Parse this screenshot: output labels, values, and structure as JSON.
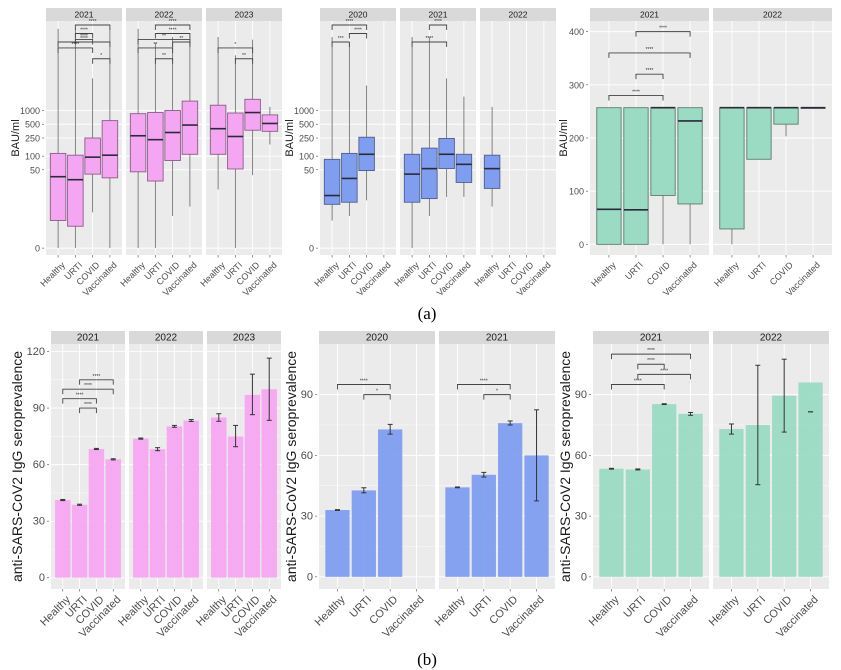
{
  "captions": {
    "a": "(a)",
    "b": "(b)"
  },
  "colors": {
    "pink": "#f5a6f2",
    "pink_edge": "#8a5c88",
    "blue": "#7f9ef0",
    "blue_edge": "#4e5f8c",
    "green": "#9bdbc4",
    "green_edge": "#5a7d6f",
    "panel_bg": "#ebebeb",
    "strip_bg": "#d9d9d9",
    "grid": "#ffffff"
  },
  "chart_data": [
    {
      "id": "a1",
      "type": "box",
      "color_key": "pink",
      "scale": "log",
      "ylabel": "BAU/ml",
      "yticks": [
        {
          "label": "1000",
          "v": 1000
        },
        {
          "label": "500",
          "v": 500
        },
        {
          "label": "250",
          "v": 250
        },
        {
          "label": "100",
          "v": 100
        },
        {
          "label": "50",
          "v": 50
        },
        {
          "label": "0",
          "v": 0
        }
      ],
      "categories": [
        "Healthy",
        "URTI",
        "COVID",
        "Vaccinated"
      ],
      "facets": [
        {
          "label": "2021",
          "boxes": [
            {
              "cat": "Healthy",
              "min": 0,
              "q1": 3,
              "med": 35,
              "q3": 115,
              "max": 60000
            },
            {
              "cat": "URTI",
              "min": 0,
              "q1": 2,
              "med": 30,
              "q3": 105,
              "max": 60000
            },
            {
              "cat": "COVID",
              "min": 5,
              "q1": 40,
              "med": 95,
              "q3": 250,
              "max": 5000
            },
            {
              "cat": "Vaccinated",
              "min": 0,
              "q1": 33,
              "med": 105,
              "q3": 600,
              "max": 60000
            }
          ],
          "sig": [
            {
              "from": 1,
              "to": 3,
              "label": "****",
              "lvl": 5
            },
            {
              "from": 1,
              "to": 2,
              "label": "****",
              "lvl": 4
            },
            {
              "from": 1,
              "to": 2,
              "label": "****",
              "lvl": 3.3
            },
            {
              "from": 0,
              "to": 3,
              "label": "****",
              "lvl": 3
            },
            {
              "from": 0,
              "to": 2,
              "label": "****",
              "lvl": 2.3
            },
            {
              "from": 2,
              "to": 3,
              "label": "*",
              "lvl": 1.5
            }
          ]
        },
        {
          "label": "2022",
          "boxes": [
            {
              "cat": "Healthy",
              "min": 0,
              "q1": 45,
              "med": 280,
              "q3": 850,
              "max": 60000
            },
            {
              "cat": "URTI",
              "min": 0,
              "q1": 28,
              "med": 230,
              "q3": 900,
              "max": 30000
            },
            {
              "cat": "COVID",
              "min": 4,
              "q1": 80,
              "med": 330,
              "q3": 1000,
              "max": 40000
            },
            {
              "cat": "Vaccinated",
              "min": 7,
              "q1": 110,
              "med": 480,
              "q3": 1600,
              "max": 40000
            }
          ],
          "sig": [
            {
              "from": 1,
              "to": 3,
              "label": "****",
              "lvl": 5
            },
            {
              "from": 1,
              "to": 3,
              "label": "****",
              "lvl": 4
            },
            {
              "from": 0,
              "to": 3,
              "label": "**",
              "lvl": 3.3
            },
            {
              "from": 2,
              "to": 3,
              "label": "**",
              "lvl": 3
            },
            {
              "from": 0,
              "to": 2,
              "label": "**",
              "lvl": 2.3
            },
            {
              "from": 1,
              "to": 2,
              "label": "**",
              "lvl": 1.5
            }
          ]
        },
        {
          "label": "2023",
          "boxes": [
            {
              "cat": "Healthy",
              "min": 18,
              "q1": 110,
              "med": 400,
              "q3": 1300,
              "max": 40000
            },
            {
              "cat": "URTI",
              "min": 0,
              "q1": 52,
              "med": 270,
              "q3": 880,
              "max": 16000
            },
            {
              "cat": "COVID",
              "min": 38,
              "q1": 370,
              "med": 900,
              "q3": 1750,
              "max": 35000
            },
            {
              "cat": "Vaccinated",
              "min": 180,
              "q1": 350,
              "med": 520,
              "q3": 800,
              "max": 1200
            }
          ],
          "sig": [
            {
              "from": 0,
              "to": 2,
              "label": "*",
              "lvl": 2.3
            },
            {
              "from": 1,
              "to": 2,
              "label": "**",
              "lvl": 1.5
            }
          ]
        }
      ]
    },
    {
      "id": "a2",
      "type": "box",
      "color_key": "blue",
      "scale": "log",
      "ylabel": "BAU/ml",
      "yticks": [
        {
          "label": "1000",
          "v": 1000
        },
        {
          "label": "500",
          "v": 500
        },
        {
          "label": "250",
          "v": 250
        },
        {
          "label": "100",
          "v": 100
        },
        {
          "label": "50",
          "v": 50
        },
        {
          "label": "0",
          "v": 0
        }
      ],
      "categories": [
        "Healthy",
        "URTI",
        "COVID",
        "Vaccinated"
      ],
      "facets": [
        {
          "label": "2020",
          "boxes": [
            {
              "cat": "Healthy",
              "min": 3,
              "q1": 8,
              "med": 13,
              "q3": 85,
              "max": 40000
            },
            {
              "cat": "URTI",
              "min": 4,
              "q1": 9,
              "med": 32,
              "q3": 115,
              "max": 30000
            },
            {
              "cat": "COVID",
              "min": 10,
              "q1": 48,
              "med": 110,
              "q3": 260,
              "max": 3500
            }
          ],
          "sig": [
            {
              "from": 0,
              "to": 2,
              "label": "****",
              "lvl": 5
            },
            {
              "from": 1,
              "to": 2,
              "label": "****",
              "lvl": 4
            },
            {
              "from": 0,
              "to": 1,
              "label": "***",
              "lvl": 3
            }
          ]
        },
        {
          "label": "2021",
          "boxes": [
            {
              "cat": "Healthy",
              "min": 0,
              "q1": 9,
              "med": 40,
              "q3": 110,
              "max": 40000
            },
            {
              "cat": "URTI",
              "min": 4,
              "q1": 11,
              "med": 53,
              "q3": 150,
              "max": 40000
            },
            {
              "cat": "COVID",
              "min": 12,
              "q1": 53,
              "med": 110,
              "q3": 245,
              "max": 5000
            },
            {
              "cat": "Vaccinated",
              "min": 12,
              "q1": 26,
              "med": 66,
              "q3": 110,
              "max": 2000
            }
          ],
          "sig": [
            {
              "from": 1,
              "to": 2,
              "label": "****",
              "lvl": 5
            },
            {
              "from": 0,
              "to": 2,
              "label": "****",
              "lvl": 3
            }
          ]
        },
        {
          "label": "2022",
          "boxes": [
            {
              "cat": "Healthy",
              "min": 7,
              "q1": 19,
              "med": 53,
              "q3": 105,
              "max": 1200
            }
          ],
          "sig": []
        }
      ]
    },
    {
      "id": "a3",
      "type": "box",
      "color_key": "green",
      "scale": "linear",
      "ylabel": "BAU/ml",
      "ylim": [
        -20,
        420
      ],
      "yticks": [
        {
          "label": "400",
          "v": 400
        },
        {
          "label": "300",
          "v": 300
        },
        {
          "label": "200",
          "v": 200
        },
        {
          "label": "100",
          "v": 100
        },
        {
          "label": "0",
          "v": 0
        }
      ],
      "categories": [
        "Healthy",
        "URTI",
        "COVID",
        "Vaccinated"
      ],
      "facets": [
        {
          "label": "2021",
          "boxes": [
            {
              "cat": "Healthy",
              "min": 0,
              "q1": 0,
              "med": 66,
              "q3": 257,
              "max": 257
            },
            {
              "cat": "URTI",
              "min": 0,
              "q1": 0,
              "med": 65,
              "q3": 257,
              "max": 257
            },
            {
              "cat": "COVID",
              "min": 0,
              "q1": 92,
              "med": 257,
              "q3": 257,
              "max": 257
            },
            {
              "cat": "Vaccinated",
              "min": 0,
              "q1": 76,
              "med": 232,
              "q3": 257,
              "max": 257
            }
          ],
          "sig": [
            {
              "from": 1,
              "to": 3,
              "label": "****",
              "v": 400
            },
            {
              "from": 0,
              "to": 3,
              "label": "****",
              "v": 360
            },
            {
              "from": 1,
              "to": 2,
              "label": "****",
              "v": 320
            },
            {
              "from": 0,
              "to": 2,
              "label": "****",
              "v": 280
            }
          ]
        },
        {
          "label": "2022",
          "boxes": [
            {
              "cat": "Healthy",
              "min": 0,
              "q1": 29,
              "med": 257,
              "q3": 257,
              "max": 257
            },
            {
              "cat": "URTI",
              "min": 160,
              "q1": 160,
              "med": 257,
              "q3": 257,
              "max": 257
            },
            {
              "cat": "COVID",
              "min": 203,
              "q1": 226,
              "med": 257,
              "q3": 257,
              "max": 257
            },
            {
              "cat": "Vaccinated",
              "min": 257,
              "q1": 257,
              "med": 257,
              "q3": 257,
              "max": 257
            }
          ],
          "sig": []
        }
      ]
    },
    {
      "id": "b1",
      "type": "bar",
      "color_key": "pink",
      "ylabel": "anti-SARS-CoV2 IgG seroprevalence",
      "ylim": [
        -6,
        124
      ],
      "yticks": [
        {
          "label": "120",
          "v": 120
        },
        {
          "label": "90",
          "v": 90
        },
        {
          "label": "60",
          "v": 60
        },
        {
          "label": "30",
          "v": 30
        },
        {
          "label": "0",
          "v": 0
        }
      ],
      "categories": [
        "Healthy",
        "URTI",
        "COVID",
        "Vaccinated"
      ],
      "facets": [
        {
          "label": "2021",
          "bars": [
            {
              "cat": "Healthy",
              "value": 41.2,
              "lo": 40.9,
              "hi": 41.5
            },
            {
              "cat": "URTI",
              "value": 38.7,
              "lo": 38.4,
              "hi": 39.0
            },
            {
              "cat": "COVID",
              "value": 68.3,
              "lo": 68.0,
              "hi": 68.6
            },
            {
              "cat": "Vaccinated",
              "value": 62.8,
              "lo": 62.5,
              "hi": 63.1
            }
          ],
          "sig": [
            {
              "from": 1,
              "to": 3,
              "label": "****",
              "v": 105
            },
            {
              "from": 0,
              "to": 3,
              "label": "****",
              "v": 100
            },
            {
              "from": 0,
              "to": 2,
              "label": "****",
              "v": 95
            },
            {
              "from": 1,
              "to": 2,
              "label": "****",
              "v": 90
            }
          ]
        },
        {
          "label": "2022",
          "bars": [
            {
              "cat": "Healthy",
              "value": 73.8,
              "lo": 73.5,
              "hi": 74.1
            },
            {
              "cat": "URTI",
              "value": 68.2,
              "lo": 67.4,
              "hi": 69.0
            },
            {
              "cat": "COVID",
              "value": 80.3,
              "lo": 79.8,
              "hi": 80.8
            },
            {
              "cat": "Vaccinated",
              "value": 83.4,
              "lo": 82.9,
              "hi": 83.9
            }
          ],
          "sig": []
        },
        {
          "label": "2023",
          "bars": [
            {
              "cat": "Healthy",
              "value": 85.0,
              "lo": 83.0,
              "hi": 87.0
            },
            {
              "cat": "URTI",
              "value": 75.0,
              "lo": 69.5,
              "hi": 80.8
            },
            {
              "cat": "COVID",
              "value": 97.0,
              "lo": 86.5,
              "hi": 108.0
            },
            {
              "cat": "Vaccinated",
              "value": 100.0,
              "lo": 83.5,
              "hi": 116.5
            }
          ],
          "sig": []
        }
      ]
    },
    {
      "id": "b2",
      "type": "bar",
      "color_key": "blue",
      "ylabel": "anti-SARS-CoV2 IgG seroprevalence",
      "ylim": [
        -6,
        115
      ],
      "yticks": [
        {
          "label": "90",
          "v": 90
        },
        {
          "label": "60",
          "v": 60
        },
        {
          "label": "30",
          "v": 30
        },
        {
          "label": "0",
          "v": 0
        }
      ],
      "categories": [
        "Healthy",
        "URTI",
        "COVID",
        "Vaccinated"
      ],
      "facets": [
        {
          "label": "2020",
          "bars": [
            {
              "cat": "Healthy",
              "value": 33.0,
              "lo": 32.8,
              "hi": 33.2
            },
            {
              "cat": "URTI",
              "value": 42.7,
              "lo": 41.5,
              "hi": 44.0
            },
            {
              "cat": "COVID",
              "value": 72.8,
              "lo": 70.5,
              "hi": 75.3
            }
          ],
          "sig": [
            {
              "from": 0,
              "to": 2,
              "label": "****",
              "v": 95
            },
            {
              "from": 1,
              "to": 2,
              "label": "*",
              "v": 90
            }
          ]
        },
        {
          "label": "2021",
          "bars": [
            {
              "cat": "Healthy",
              "value": 44.2,
              "lo": 44.0,
              "hi": 44.4
            },
            {
              "cat": "URTI",
              "value": 50.4,
              "lo": 49.3,
              "hi": 51.6
            },
            {
              "cat": "COVID",
              "value": 75.9,
              "lo": 75.0,
              "hi": 77.0
            },
            {
              "cat": "Vaccinated",
              "value": 60.0,
              "lo": 37.5,
              "hi": 82.5
            }
          ],
          "sig": [
            {
              "from": 0,
              "to": 2,
              "label": "****",
              "v": 95
            },
            {
              "from": 1,
              "to": 2,
              "label": "*",
              "v": 90
            }
          ]
        }
      ]
    },
    {
      "id": "b3",
      "type": "bar",
      "color_key": "green",
      "ylabel": "anti-SARS-CoV2 IgG seroprevalence",
      "ylim": [
        -6,
        115
      ],
      "yticks": [
        {
          "label": "90",
          "v": 90
        },
        {
          "label": "60",
          "v": 60
        },
        {
          "label": "30",
          "v": 30
        },
        {
          "label": "0",
          "v": 0
        }
      ],
      "categories": [
        "Healthy",
        "URTI",
        "COVID",
        "Vaccinated"
      ],
      "facets": [
        {
          "label": "2021",
          "bars": [
            {
              "cat": "Healthy",
              "value": 53.4,
              "lo": 53.2,
              "hi": 53.6
            },
            {
              "cat": "URTI",
              "value": 53.0,
              "lo": 52.8,
              "hi": 53.3
            },
            {
              "cat": "COVID",
              "value": 85.3,
              "lo": 85.1,
              "hi": 85.5
            },
            {
              "cat": "Vaccinated",
              "value": 80.5,
              "lo": 79.8,
              "hi": 81.2
            }
          ],
          "sig": [
            {
              "from": 0,
              "to": 3,
              "label": "****",
              "v": 110
            },
            {
              "from": 1,
              "to": 2,
              "label": "****",
              "v": 105
            },
            {
              "from": 1,
              "to": 3,
              "label": "****",
              "v": 100
            },
            {
              "from": 0,
              "to": 2,
              "label": "****",
              "v": 95
            }
          ]
        },
        {
          "label": "2022",
          "bars": [
            {
              "cat": "Healthy",
              "value": 73.0,
              "lo": 70.5,
              "hi": 75.5
            },
            {
              "cat": "URTI",
              "value": 75.0,
              "lo": 45.5,
              "hi": 104.5
            },
            {
              "cat": "COVID",
              "value": 89.5,
              "lo": 71.5,
              "hi": 107.5
            },
            {
              "cat": "Vaccinated",
              "value": 96.0,
              "lo": 81.5,
              "hi": 81.5
            }
          ],
          "sig": []
        }
      ]
    }
  ]
}
